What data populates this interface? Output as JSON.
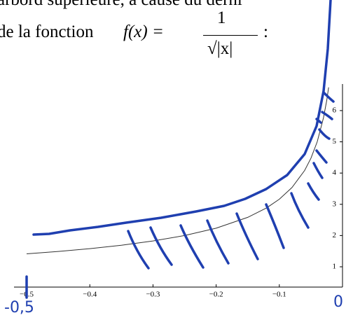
{
  "text": {
    "line1": "arbord supérieure, à cause du derni",
    "line2": "de la fonction",
    "formula_lhs": "f(x) =",
    "numerator": "1",
    "denominator": "√|x|",
    "colon": ":"
  },
  "chart_data": {
    "type": "line",
    "x": [
      -0.5,
      -0.45,
      -0.4,
      -0.35,
      -0.3,
      -0.25,
      -0.2,
      -0.15,
      -0.12,
      -0.1,
      -0.08,
      -0.06,
      -0.05,
      -0.04,
      -0.03,
      -0.025,
      -0.022
    ],
    "values": [
      1.414,
      1.491,
      1.581,
      1.69,
      1.826,
      2.0,
      2.236,
      2.582,
      2.887,
      3.162,
      3.536,
      4.082,
      4.472,
      5.0,
      5.774,
      6.325,
      6.742
    ],
    "color": "#333333",
    "xlim": [
      -0.52,
      0.0
    ],
    "ylim": [
      0.35,
      6.85
    ],
    "xticks": [
      {
        "value": -0.5,
        "label": "−0.5"
      },
      {
        "value": -0.4,
        "label": "−0.4"
      },
      {
        "value": -0.3,
        "label": "−0.3"
      },
      {
        "value": -0.2,
        "label": "−0.2"
      },
      {
        "value": -0.1,
        "label": "−0.1"
      }
    ],
    "yticks": [
      1,
      2,
      3,
      4,
      5,
      6
    ],
    "annotations": [
      "-0,5",
      "0"
    ]
  }
}
